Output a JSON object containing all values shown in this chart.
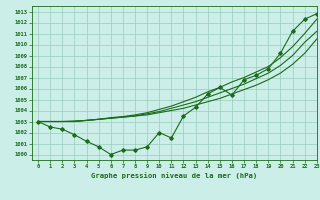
{
  "title": "Graphe pression niveau de la mer (hPa)",
  "bg_color": "#cceee8",
  "grid_color": "#99ccbb",
  "line_color": "#1a6b1a",
  "xlim": [
    -0.5,
    23
  ],
  "ylim": [
    999.5,
    1013.5
  ],
  "yticks": [
    1000,
    1001,
    1002,
    1003,
    1004,
    1005,
    1006,
    1007,
    1008,
    1009,
    1010,
    1011,
    1012,
    1013
  ],
  "xticks": [
    0,
    1,
    2,
    3,
    4,
    5,
    6,
    7,
    8,
    9,
    10,
    11,
    12,
    13,
    14,
    15,
    16,
    17,
    18,
    19,
    20,
    21,
    22,
    23
  ],
  "series_main": [
    1003.0,
    1002.5,
    1002.3,
    1001.8,
    1001.2,
    1000.7,
    1000.0,
    1000.4,
    1000.4,
    1000.7,
    1002.0,
    1001.5,
    1003.5,
    1004.3,
    1005.5,
    1006.1,
    1005.4,
    1006.8,
    1007.2,
    1007.8,
    1009.2,
    1011.2,
    1012.3,
    1012.8
  ],
  "series_line1": [
    1003.0,
    1003.0,
    1003.0,
    1003.0,
    1003.1,
    1003.2,
    1003.3,
    1003.4,
    1003.5,
    1003.6,
    1003.8,
    1004.0,
    1004.2,
    1004.5,
    1004.8,
    1005.1,
    1005.5,
    1005.9,
    1006.3,
    1006.8,
    1007.4,
    1008.2,
    1009.2,
    1010.5
  ],
  "series_line2": [
    1003.0,
    1003.0,
    1003.0,
    1003.0,
    1003.1,
    1003.2,
    1003.3,
    1003.4,
    1003.5,
    1003.7,
    1003.9,
    1004.2,
    1004.5,
    1004.8,
    1005.2,
    1005.6,
    1006.0,
    1006.4,
    1006.9,
    1007.4,
    1008.1,
    1009.0,
    1010.2,
    1011.2
  ],
  "series_line3": [
    1003.0,
    1003.0,
    1003.0,
    1003.05,
    1003.1,
    1003.2,
    1003.35,
    1003.45,
    1003.6,
    1003.8,
    1004.1,
    1004.4,
    1004.8,
    1005.2,
    1005.7,
    1006.1,
    1006.6,
    1007.0,
    1007.5,
    1008.0,
    1008.8,
    1009.8,
    1011.0,
    1012.3
  ]
}
